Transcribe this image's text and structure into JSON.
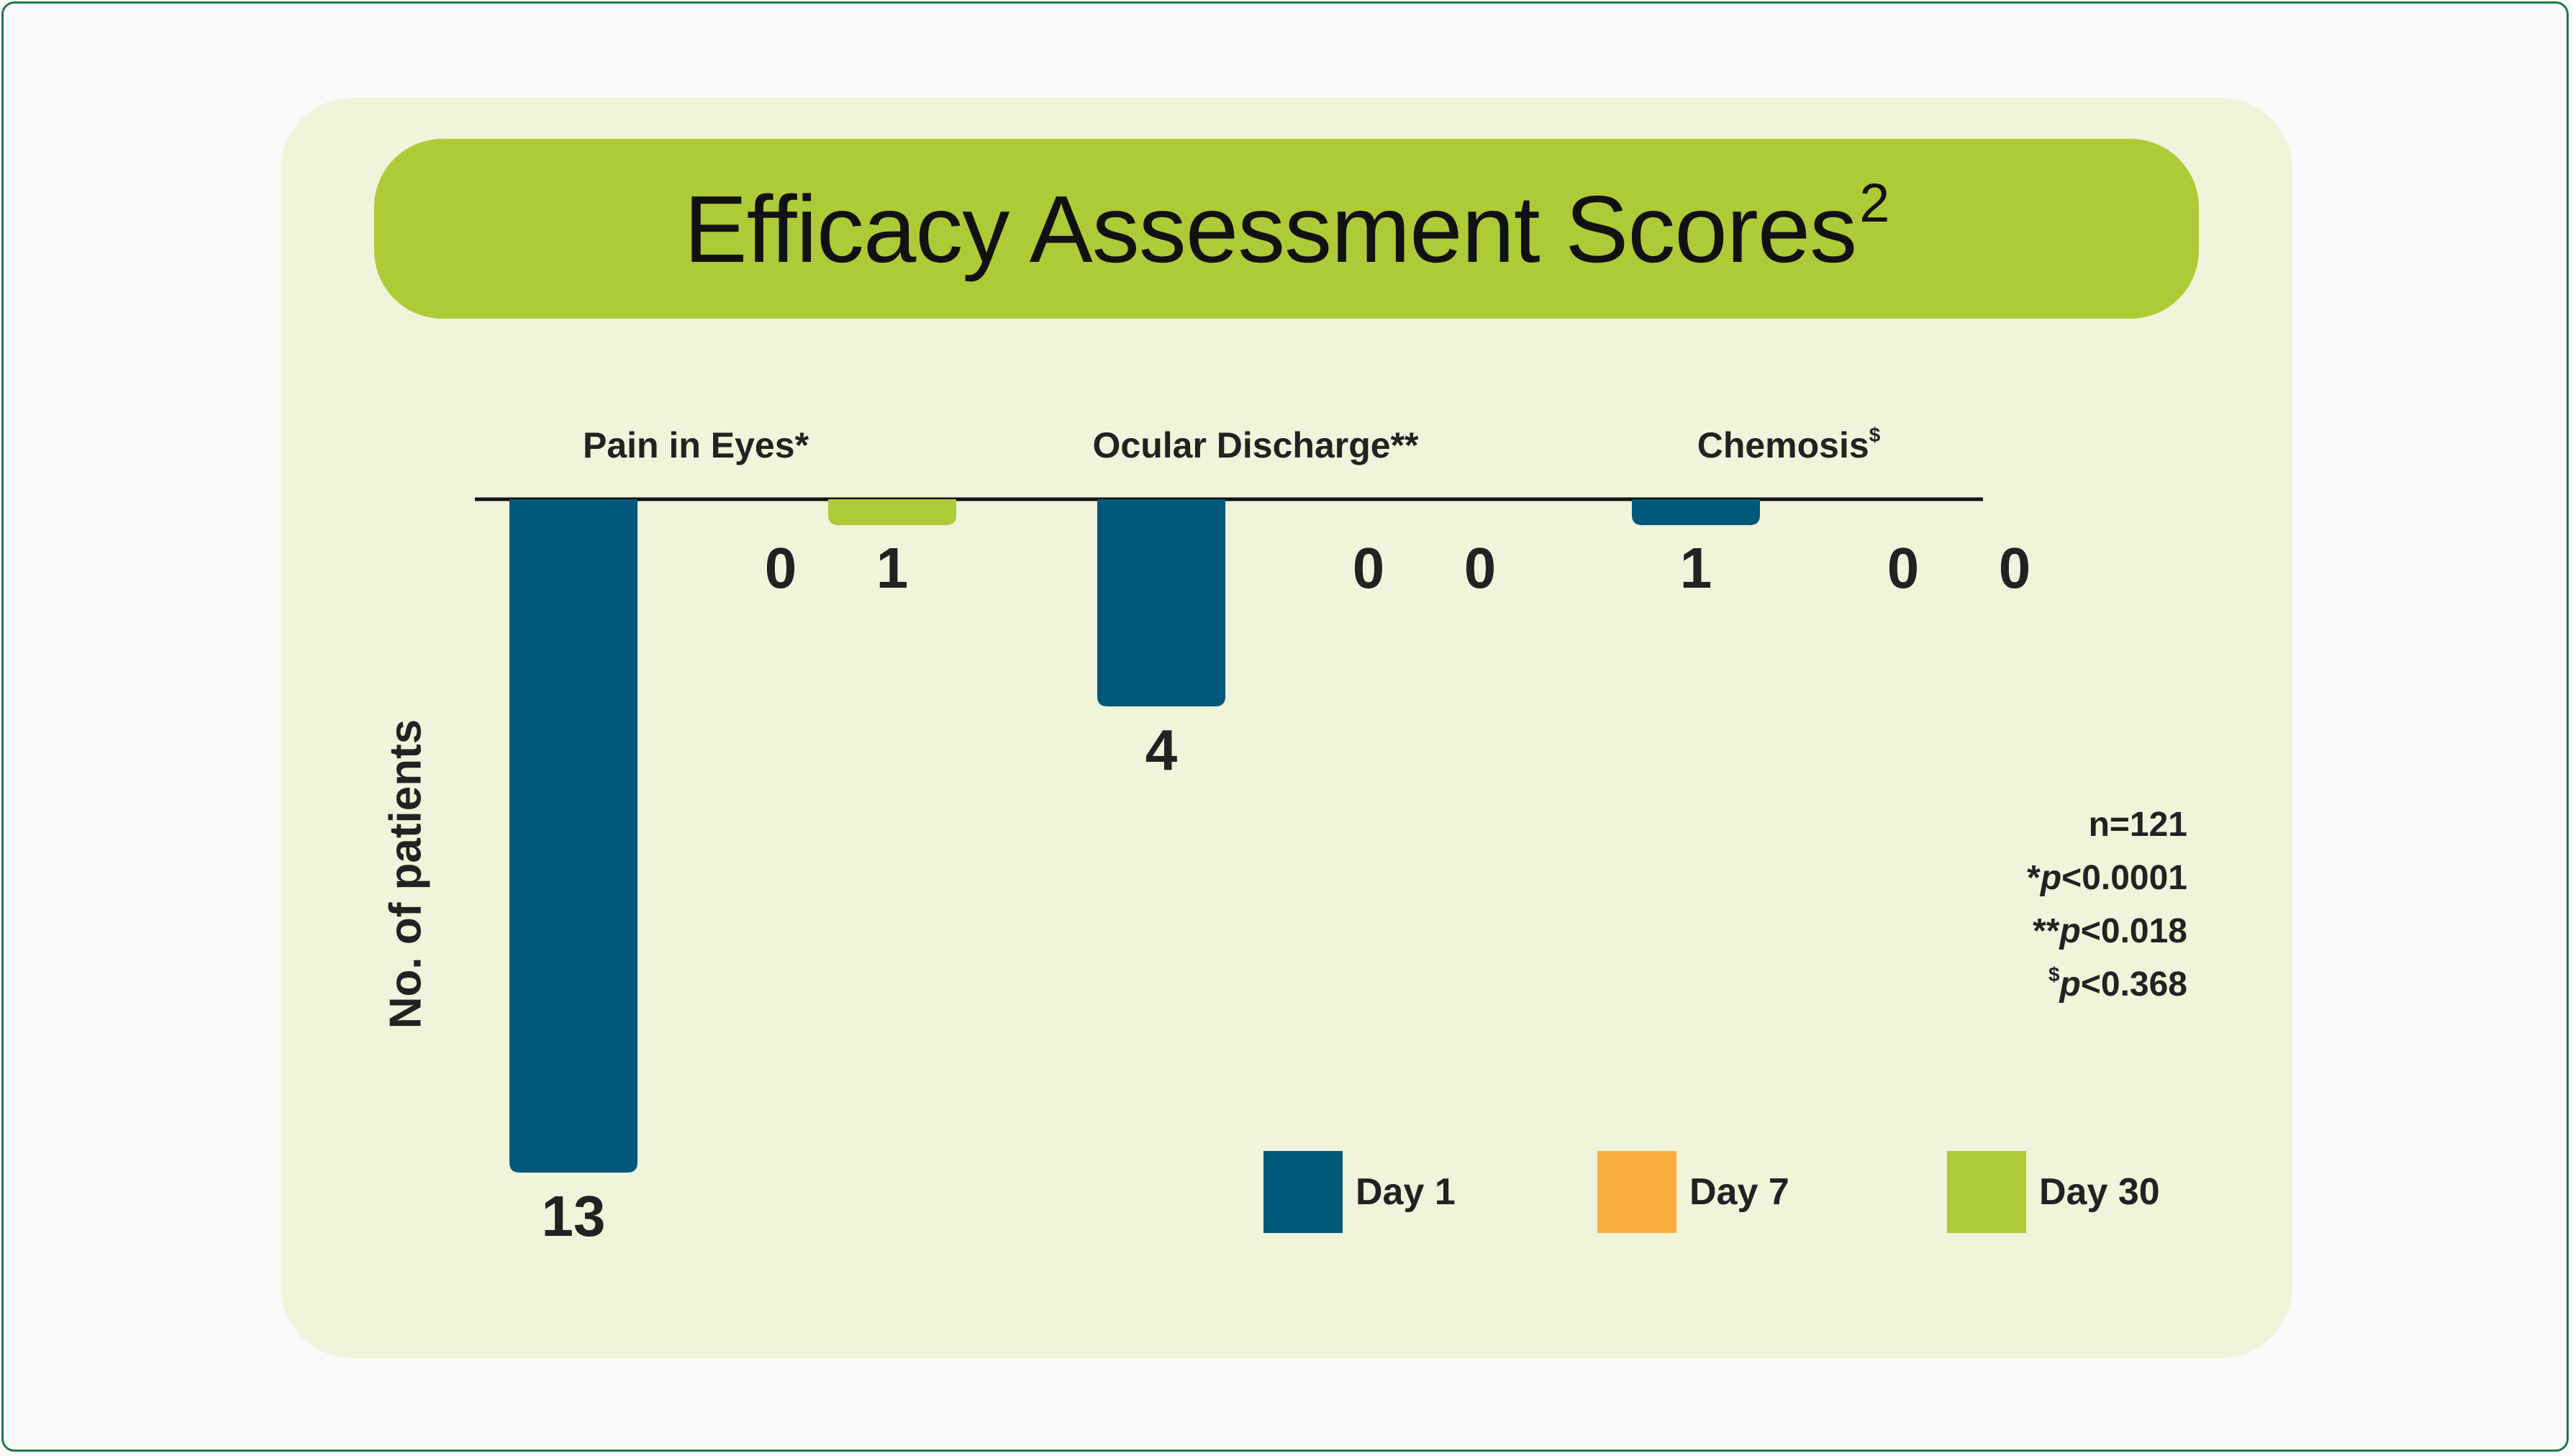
{
  "chart_data": {
    "type": "bar",
    "title": "Efficacy Assessment Scores",
    "title_superscript": "2",
    "ylabel": "No. of patients",
    "categories": [
      "Pain in Eyes",
      "Ocular Discharge",
      "Chemosis"
    ],
    "category_marks": [
      "*",
      "**",
      "$"
    ],
    "series": [
      {
        "name": "Day 1",
        "color": "#00587a",
        "values": [
          13,
          4,
          1
        ]
      },
      {
        "name": "Day 7",
        "color": "#fbae42",
        "values": [
          0,
          0,
          0
        ]
      },
      {
        "name": "Day 30",
        "color": "#afca37",
        "values": [
          1,
          0,
          0
        ]
      }
    ],
    "ylim": [
      0,
      13
    ],
    "orientation": "bars hang downward from top axis",
    "grid": false,
    "legend_position": "bottom-right",
    "notes": {
      "n": "n=121",
      "p1_prefix": "*",
      "p1_italic": "p",
      "p1_value": "<0.0001",
      "p2_prefix": "**",
      "p2_italic": "p",
      "p2_value": "<0.018",
      "p3_prefix": "$",
      "p3_italic": "p",
      "p3_value": "<0.368"
    }
  }
}
